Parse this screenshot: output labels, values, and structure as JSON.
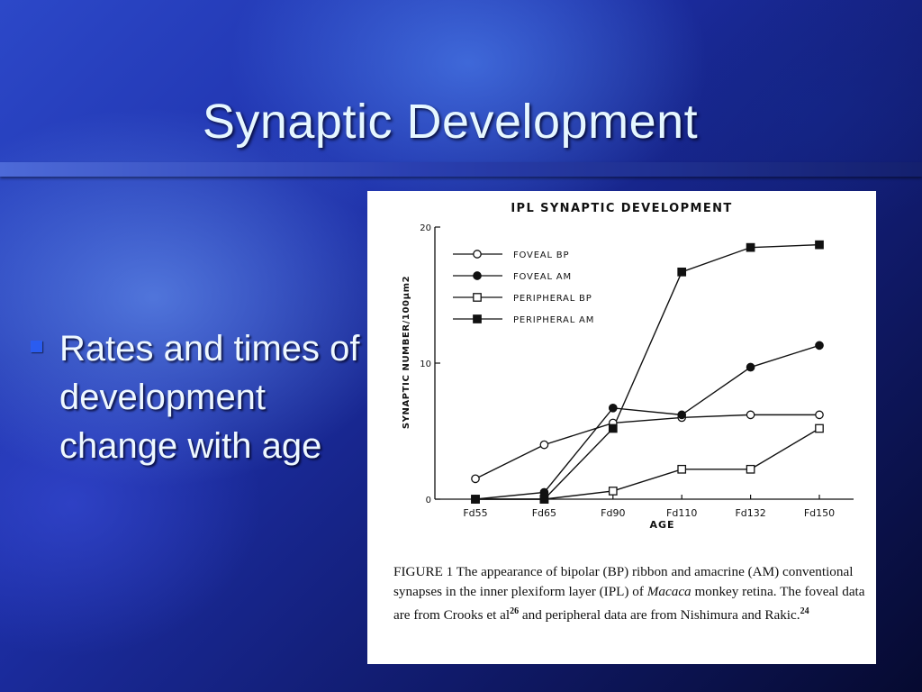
{
  "slide": {
    "title": "Synaptic Development",
    "bullet": "Rates and times of development change with age"
  },
  "colors": {
    "title_text": "#e6f7ff",
    "bullet_marker": "#2a5cf0",
    "figure_background": "#ffffff",
    "ink": "#111111"
  },
  "chart_data": {
    "type": "line",
    "title": "IPL SYNAPTIC DEVELOPMENT",
    "xlabel": "AGE",
    "ylabel": "SYNAPTIC NUMBER/100μm2",
    "categories": [
      "Fd55",
      "Fd65",
      "Fd90",
      "Fd110",
      "Fd132",
      "Fd150"
    ],
    "ylim": [
      0,
      20
    ],
    "yticks": [
      0,
      10,
      20
    ],
    "legend_position": "top-left",
    "series": [
      {
        "name": "FOVEAL BP",
        "marker": "open-circle",
        "values": [
          1.5,
          4.0,
          5.6,
          6.0,
          6.2,
          6.2
        ]
      },
      {
        "name": "FOVEAL AM",
        "marker": "filled-circle",
        "values": [
          0.0,
          0.5,
          6.7,
          6.2,
          9.7,
          11.3
        ]
      },
      {
        "name": "PERIPHERAL BP",
        "marker": "open-square",
        "values": [
          0.0,
          0.0,
          0.6,
          2.2,
          2.2,
          5.2
        ]
      },
      {
        "name": "PERIPHERAL AM",
        "marker": "filled-square",
        "values": [
          0.0,
          0.0,
          5.2,
          16.7,
          18.5,
          18.7
        ]
      }
    ]
  },
  "caption": {
    "lead": "FIGURE 1 The appearance of bipolar (BP) ribbon and amacrine (AM) conventional synapses in the inner plexiform layer (IPL) of",
    "italic": "Macaca",
    "middle": "monkey retina. The foveal data are from Crooks et al",
    "ref1": "26",
    "after_ref1": "and peripheral data are from Nishimura and Rakic.",
    "ref2": "24"
  }
}
